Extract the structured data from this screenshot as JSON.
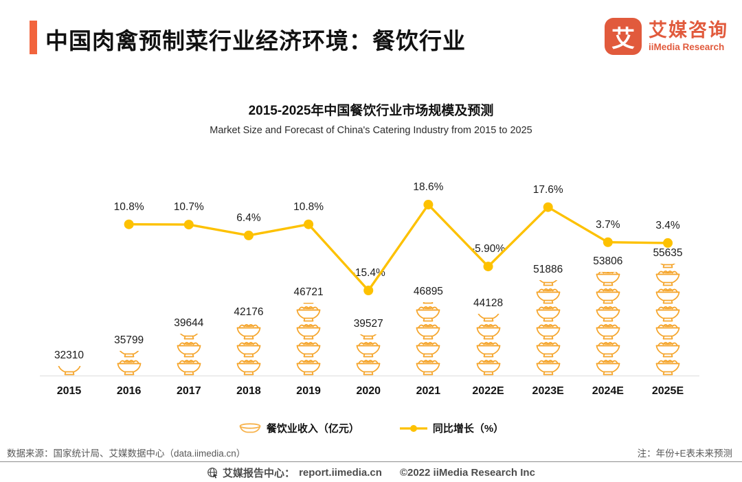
{
  "header": {
    "title": "中国肉禽预制菜行业经济环境：餐饮行业",
    "accent_color": "#F2643D"
  },
  "logo": {
    "glyph": "艾",
    "cn": "艾媒咨询",
    "en": "iiMedia Research",
    "color": "#E15A3C"
  },
  "chart": {
    "title": "2015-2025年中国餐饮行业市场规模及预测",
    "subtitle": "Market Size and Forecast of China's Catering Industry from 2015 to 2025"
  },
  "chart_data": {
    "type": "bar",
    "subtype": "pictograph bowl-stack bars with overlaid line",
    "title": "2015-2025年中国餐饮行业市场规模及预测",
    "subtitle": "Market Size and Forecast of China's Catering Industry from 2015 to 2025",
    "categories": [
      "2015",
      "2016",
      "2017",
      "2018",
      "2019",
      "2020",
      "2021",
      "2022E",
      "2023E",
      "2024E",
      "2025E"
    ],
    "series": [
      {
        "name": "餐饮业收入（亿元）",
        "type": "bar",
        "unit": "亿元",
        "color": "#F5A52C",
        "icon": "noodle-bowl",
        "values": [
          32310,
          35799,
          39644,
          42176,
          46721,
          39527,
          46895,
          44128,
          51886,
          53806,
          55635
        ]
      },
      {
        "name": "同比增长（%）",
        "type": "line",
        "unit": "%",
        "color": "#FDC100",
        "values": [
          null,
          10.8,
          10.7,
          6.4,
          10.8,
          -15.4,
          18.6,
          -5.9,
          17.6,
          3.7,
          3.4
        ],
        "labels": [
          "",
          "10.8%",
          "10.7%",
          "6.4%",
          "10.8%",
          "-15.4%",
          "18.6%",
          "-5.90%",
          "17.6%",
          "3.7%",
          "3.4%"
        ]
      }
    ],
    "legend_position": "bottom",
    "grid": false,
    "y_axis_visible": false
  },
  "legend": [
    {
      "label": "餐饮业收入（亿元）",
      "icon": "bowl-icon"
    },
    {
      "label": "同比增长（%）",
      "icon": "line-dot-icon"
    }
  ],
  "footnotes": {
    "source": "数据来源：国家统计局、艾媒数据中心（data.iimedia.cn）",
    "note": "注：年份+E表未来预测"
  },
  "footer": {
    "report_center": "艾媒报告中心：",
    "url": "report.iimedia.cn",
    "copyright": "©2022  iiMedia Research Inc"
  }
}
